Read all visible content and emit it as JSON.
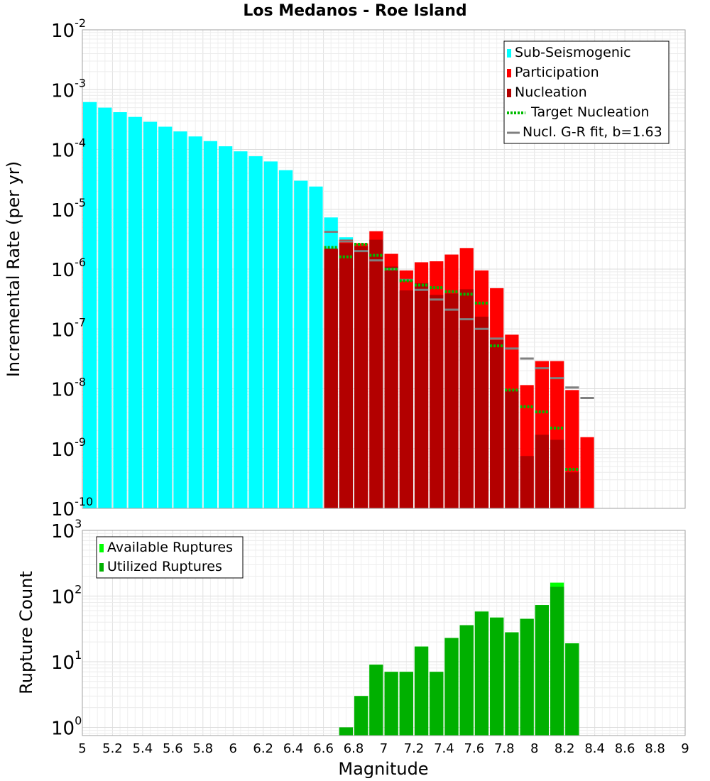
{
  "chart_data": [
    {
      "type": "bar",
      "title": "Los Medanos - Roe Island",
      "xlabel": "",
      "ylabel": "Incremental Rate (per yr)",
      "y_scale": "log",
      "ylim": [
        1e-10,
        0.01
      ],
      "xlim": [
        5,
        9
      ],
      "y_tick_labels": [
        "10-10",
        "10-9",
        "10-8",
        "10-7",
        "10-6",
        "10-5",
        "10-4",
        "10-3",
        "10-2"
      ],
      "grid": true,
      "legend_position": "top-right",
      "legend": [
        {
          "label": "Sub-Seismogenic",
          "color": "#00ffff",
          "style": "bar"
        },
        {
          "label": "Participation",
          "color": "#ff0000",
          "style": "bar"
        },
        {
          "label": "Nucleation",
          "color": "#b30000",
          "style": "bar"
        },
        {
          "label": "Target Nucleation",
          "color": "#00bb00",
          "style": "dotted"
        },
        {
          "label": "Nucl. G-R fit, b=1.63",
          "color": "#808080",
          "style": "line"
        }
      ],
      "series": [
        {
          "name": "Sub-Seismogenic",
          "color": "#00ffff",
          "x": [
            5.05,
            5.15,
            5.25,
            5.35,
            5.45,
            5.55,
            5.65,
            5.75,
            5.85,
            5.95,
            6.05,
            6.15,
            6.25,
            6.35,
            6.45,
            6.55,
            6.65,
            6.75
          ],
          "values": [
            0.00062,
            0.0005,
            0.00042,
            0.00035,
            0.00029,
            0.00024,
            0.0002,
            0.000165,
            0.000138,
            0.000113,
            9.3e-05,
            7.7e-05,
            6.3e-05,
            4.5e-05,
            3e-05,
            2.4e-05,
            7.3e-06,
            3.4e-06
          ]
        },
        {
          "name": "Participation",
          "color": "#ff0000",
          "x": [
            6.65,
            6.75,
            6.85,
            6.95,
            7.05,
            7.15,
            7.25,
            7.35,
            7.45,
            7.55,
            7.65,
            7.75,
            7.85,
            7.95,
            8.05,
            8.15,
            8.25,
            8.35
          ],
          "values": [
            2.1e-06,
            3.1e-06,
            2.7e-06,
            4.3e-06,
            1.8e-06,
            9.5e-07,
            1.3e-06,
            1.35e-06,
            1.75e-06,
            2.25e-06,
            9.5e-07,
            4.8e-07,
            8e-08,
            1.15e-08,
            2.9e-08,
            2.9e-08,
            9.5e-09,
            1.55e-09
          ]
        },
        {
          "name": "Nucleation",
          "color": "#b30000",
          "x": [
            6.65,
            6.75,
            6.85,
            6.95,
            7.05,
            7.15,
            7.25,
            7.35,
            7.45,
            7.55,
            7.65,
            7.75,
            7.85,
            7.95,
            8.05,
            8.15,
            8.25
          ],
          "values": [
            2.2e-06,
            2.7e-06,
            2.4e-06,
            3.1e-06,
            1.1e-06,
            4.4e-07,
            5.8e-07,
            3.7e-07,
            3.9e-07,
            4.6e-07,
            1.6e-07,
            6.5e-08,
            9.5e-09,
            7.5e-10,
            1.7e-09,
            1.4e-09,
            4e-10
          ]
        },
        {
          "name": "Target Nucleation",
          "color": "#00bb00",
          "x": [
            6.65,
            6.75,
            6.85,
            6.95,
            7.05,
            7.15,
            7.25,
            7.35,
            7.45,
            7.55,
            7.65,
            7.75,
            7.85,
            7.95,
            8.05,
            8.15,
            8.25
          ],
          "values": [
            2.3e-06,
            1.6e-06,
            2.6e-06,
            1.7e-06,
            1e-06,
            6.4e-07,
            5.4e-07,
            4.9e-07,
            4.2e-07,
            3.8e-07,
            2.7e-07,
            5.2e-08,
            9.5e-09,
            5e-09,
            4.1e-09,
            2.2e-09,
            4.5e-10
          ]
        },
        {
          "name": "Nucl. G-R fit, b=1.63",
          "color": "#808080",
          "x": [
            6.65,
            6.75,
            6.85,
            6.95,
            7.05,
            7.15,
            7.25,
            7.35,
            7.45,
            7.55,
            7.65,
            7.75,
            7.85,
            7.95,
            8.05,
            8.15,
            8.25,
            8.35
          ],
          "values": [
            4.2e-06,
            2.9e-06,
            2e-06,
            1.4e-06,
            1e-06,
            6.6e-07,
            4.5e-07,
            3.1e-07,
            2.1e-07,
            1.45e-07,
            1e-07,
            6.9e-08,
            4.7e-08,
            3.2e-08,
            2.2e-08,
            1.5e-08,
            1.05e-08,
            7e-09
          ]
        }
      ]
    },
    {
      "type": "bar",
      "xlabel": "Magnitude",
      "ylabel": "Rupture Count",
      "y_scale": "log",
      "ylim": [
        0.75,
        1000
      ],
      "xlim": [
        5,
        9
      ],
      "x_tick_labels": [
        "5",
        "5.2",
        "5.4",
        "5.6",
        "5.8",
        "6",
        "6.2",
        "6.4",
        "6.6",
        "6.8",
        "7",
        "7.2",
        "7.4",
        "7.6",
        "7.8",
        "8",
        "8.2",
        "8.4",
        "8.6",
        "8.8",
        "9"
      ],
      "y_tick_labels": [
        "100",
        "101",
        "102",
        "103"
      ],
      "grid": true,
      "legend_position": "top-left",
      "legend": [
        {
          "label": "Available Ruptures",
          "color": "#00ff00",
          "style": "bar"
        },
        {
          "label": "Utilized Ruptures",
          "color": "#00b000",
          "style": "bar"
        }
      ],
      "series": [
        {
          "name": "Available Ruptures",
          "color": "#00ff00",
          "x": [
            6.75,
            6.85,
            6.95,
            7.05,
            7.15,
            7.25,
            7.35,
            7.45,
            7.55,
            7.65,
            7.75,
            7.85,
            7.95,
            8.05,
            8.15,
            8.25
          ],
          "values": [
            1,
            3,
            9,
            7,
            7,
            17,
            7,
            23,
            36,
            58,
            47,
            28,
            45,
            73,
            160,
            19
          ]
        },
        {
          "name": "Utilized Ruptures",
          "color": "#00b000",
          "x": [
            6.75,
            6.85,
            6.95,
            7.05,
            7.15,
            7.25,
            7.35,
            7.45,
            7.55,
            7.65,
            7.75,
            7.85,
            7.95,
            8.05,
            8.15,
            8.25
          ],
          "values": [
            1,
            3,
            9,
            7,
            7,
            17,
            7,
            23,
            36,
            58,
            47,
            28,
            45,
            73,
            138,
            19
          ]
        }
      ]
    }
  ]
}
